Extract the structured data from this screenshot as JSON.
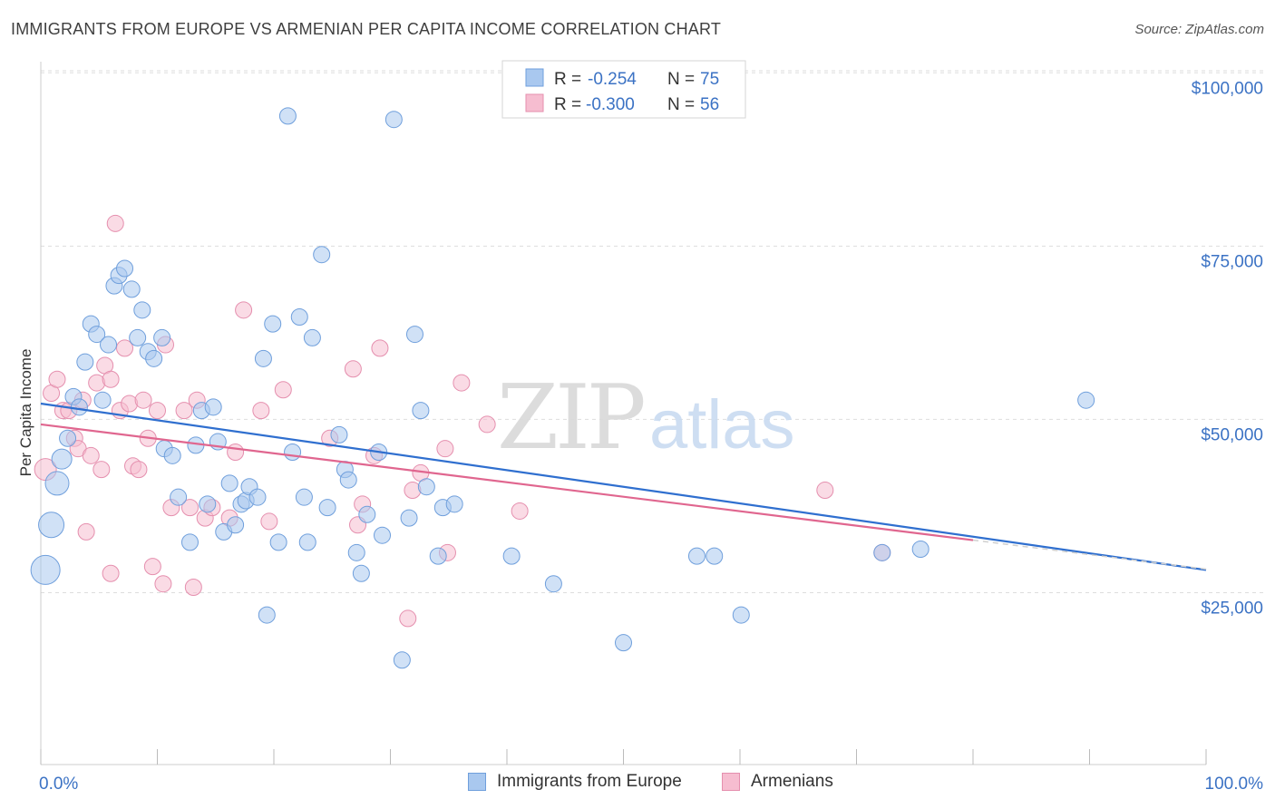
{
  "title": "IMMIGRANTS FROM EUROPE VS ARMENIAN PER CAPITA INCOME CORRELATION CHART",
  "source": "Source: ZipAtlas.com",
  "watermark": {
    "zip": "ZIP",
    "atlas": "atlas"
  },
  "legend_top": [
    {
      "r_label": "R =",
      "r_value": "-0.254",
      "n_label": "N =",
      "n_value": "75"
    },
    {
      "r_label": "R =",
      "r_value": "-0.300",
      "n_label": "N =",
      "n_value": "56"
    }
  ],
  "legend_bottom": [
    "Immigrants from Europe",
    "Armenians"
  ],
  "colors": {
    "blue_fill": "#a9c8ef",
    "blue_stroke": "#6f9fdc",
    "blue_line": "#2f6fcf",
    "pink_fill": "#f6bdd0",
    "pink_stroke": "#e58fae",
    "pink_line": "#e0668f",
    "axis_text": "#3b72c4",
    "grid": "#dddddd"
  },
  "chart_data": {
    "type": "scatter",
    "xlabel": "",
    "ylabel": "Per Capita Income",
    "xlim": [
      0,
      100
    ],
    "ylim": [
      0,
      105000
    ],
    "x_tick_labels": [
      "0.0%",
      "100.0%"
    ],
    "y_ticks": [
      25000,
      50000,
      75000,
      100000
    ],
    "y_tick_labels": [
      "$25,000",
      "$50,000",
      "$75,000",
      "$100,000"
    ],
    "grid": "horizontal dashed",
    "series": [
      {
        "name": "Immigrants from Europe",
        "r": -0.254,
        "n": 75,
        "trend": {
          "x": [
            0,
            100
          ],
          "y": [
            54500,
            30500
          ]
        },
        "points": [
          [
            0.4,
            30500,
            16
          ],
          [
            0.9,
            37000,
            14
          ],
          [
            1.4,
            43000,
            13
          ],
          [
            1.8,
            46500,
            11
          ],
          [
            2.3,
            49500,
            9
          ],
          [
            2.8,
            55500,
            9
          ],
          [
            3.3,
            54000,
            9
          ],
          [
            3.8,
            60500,
            9
          ],
          [
            4.3,
            66000,
            9
          ],
          [
            4.8,
            64500,
            9
          ],
          [
            5.3,
            55000,
            9
          ],
          [
            5.8,
            63000,
            9
          ],
          [
            6.3,
            71500,
            9
          ],
          [
            6.7,
            73000,
            9
          ],
          [
            7.2,
            74000,
            9
          ],
          [
            7.8,
            71000,
            9
          ],
          [
            8.3,
            64000,
            9
          ],
          [
            8.7,
            68000,
            9
          ],
          [
            9.2,
            62000,
            9
          ],
          [
            9.7,
            61000,
            9
          ],
          [
            10.4,
            64000,
            9
          ],
          [
            10.6,
            48000,
            9
          ],
          [
            11.3,
            47000,
            9
          ],
          [
            11.8,
            41000,
            9
          ],
          [
            12.8,
            34500,
            9
          ],
          [
            13.3,
            48500,
            9
          ],
          [
            13.8,
            53500,
            9
          ],
          [
            14.3,
            40000,
            9
          ],
          [
            14.8,
            54000,
            9
          ],
          [
            15.2,
            49000,
            9
          ],
          [
            15.7,
            36000,
            9
          ],
          [
            16.2,
            43000,
            9
          ],
          [
            16.7,
            37000,
            9
          ],
          [
            17.2,
            40000,
            9
          ],
          [
            17.6,
            40500,
            9
          ],
          [
            17.9,
            42500,
            9
          ],
          [
            18.6,
            41000,
            9
          ],
          [
            19.1,
            61000,
            9
          ],
          [
            19.4,
            24000,
            9
          ],
          [
            19.9,
            66000,
            9
          ],
          [
            20.4,
            34500,
            9
          ],
          [
            21.2,
            96000,
            9
          ],
          [
            21.6,
            47500,
            9
          ],
          [
            22.2,
            67000,
            9
          ],
          [
            22.6,
            41000,
            9
          ],
          [
            22.9,
            34500,
            9
          ],
          [
            23.3,
            64000,
            9
          ],
          [
            24.1,
            76000,
            9
          ],
          [
            24.6,
            39500,
            9
          ],
          [
            25.6,
            50000,
            9
          ],
          [
            26.1,
            45000,
            9
          ],
          [
            26.4,
            43500,
            9
          ],
          [
            27.1,
            33000,
            9
          ],
          [
            27.5,
            30000,
            9
          ],
          [
            28.0,
            38500,
            9
          ],
          [
            29.0,
            47500,
            9
          ],
          [
            29.3,
            35500,
            9
          ],
          [
            30.3,
            95500,
            9
          ],
          [
            31.0,
            17500,
            9
          ],
          [
            31.6,
            38000,
            9
          ],
          [
            32.1,
            64500,
            9
          ],
          [
            32.6,
            53500,
            9
          ],
          [
            33.1,
            42500,
            9
          ],
          [
            34.1,
            32500,
            9
          ],
          [
            34.5,
            39500,
            9
          ],
          [
            35.5,
            40000,
            9
          ],
          [
            40.4,
            32500,
            9
          ],
          [
            44.0,
            28500,
            9
          ],
          [
            50.0,
            20000,
            9
          ],
          [
            56.3,
            32500,
            9
          ],
          [
            60.1,
            24000,
            9
          ],
          [
            72.2,
            33000,
            9
          ],
          [
            75.5,
            33500,
            9
          ],
          [
            89.7,
            55000,
            9
          ],
          [
            57.8,
            32500,
            9
          ]
        ]
      },
      {
        "name": "Armenians",
        "r": -0.3,
        "n": 56,
        "trend": {
          "x": [
            0,
            80
          ],
          "y": [
            51500,
            34800
          ]
        },
        "points": [
          [
            0.4,
            45000,
            12
          ],
          [
            0.9,
            56000,
            9
          ],
          [
            1.4,
            58000,
            9
          ],
          [
            1.9,
            53500,
            9
          ],
          [
            2.4,
            53500,
            9
          ],
          [
            2.9,
            49500,
            9
          ],
          [
            3.2,
            48000,
            9
          ],
          [
            3.6,
            55000,
            9
          ],
          [
            3.9,
            36000,
            9
          ],
          [
            4.3,
            47000,
            9
          ],
          [
            4.8,
            57500,
            9
          ],
          [
            5.2,
            45000,
            9
          ],
          [
            5.5,
            60000,
            9
          ],
          [
            6.0,
            58000,
            9
          ],
          [
            6.4,
            80500,
            9
          ],
          [
            6.8,
            53500,
            9
          ],
          [
            7.2,
            62500,
            9
          ],
          [
            7.6,
            54500,
            9
          ],
          [
            7.9,
            45500,
            9
          ],
          [
            8.4,
            45000,
            9
          ],
          [
            8.8,
            55000,
            9
          ],
          [
            9.2,
            49500,
            9
          ],
          [
            9.6,
            31000,
            9
          ],
          [
            10.0,
            53500,
            9
          ],
          [
            10.5,
            28500,
            9
          ],
          [
            10.7,
            63000,
            9
          ],
          [
            11.2,
            39500,
            9
          ],
          [
            12.3,
            53500,
            9
          ],
          [
            12.8,
            39500,
            9
          ],
          [
            13.1,
            28000,
            9
          ],
          [
            13.4,
            55000,
            9
          ],
          [
            14.1,
            38000,
            9
          ],
          [
            14.7,
            39500,
            9
          ],
          [
            16.2,
            38000,
            9
          ],
          [
            16.7,
            47500,
            9
          ],
          [
            17.4,
            68000,
            9
          ],
          [
            18.9,
            53500,
            9
          ],
          [
            19.6,
            37500,
            9
          ],
          [
            20.8,
            56500,
            9
          ],
          [
            24.8,
            49500,
            9
          ],
          [
            26.8,
            59500,
            9
          ],
          [
            27.2,
            37000,
            9
          ],
          [
            27.6,
            40000,
            9
          ],
          [
            28.6,
            47000,
            9
          ],
          [
            29.1,
            62500,
            9
          ],
          [
            31.5,
            23500,
            9
          ],
          [
            31.9,
            42000,
            9
          ],
          [
            32.6,
            44500,
            9
          ],
          [
            34.7,
            48000,
            9
          ],
          [
            34.9,
            33000,
            9
          ],
          [
            36.1,
            57500,
            9
          ],
          [
            38.3,
            51500,
            9
          ],
          [
            41.1,
            39000,
            9
          ],
          [
            67.3,
            42000,
            9
          ],
          [
            72.2,
            33000,
            9
          ],
          [
            6.0,
            30000,
            9
          ]
        ]
      }
    ]
  }
}
